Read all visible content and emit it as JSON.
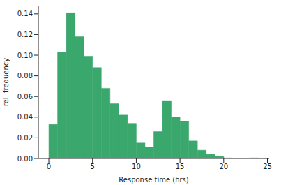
{
  "chart_data": {
    "type": "histogram",
    "x_label": "Response time (hrs)",
    "y_label": "rel. frequency",
    "bins": [
      0,
      1,
      2,
      3,
      4,
      5,
      6,
      7,
      8,
      9,
      10,
      11,
      12,
      13,
      14,
      15,
      16,
      17,
      18,
      19,
      20,
      21,
      22,
      23,
      24
    ],
    "values": [
      0.033,
      0.103,
      0.141,
      0.118,
      0.099,
      0.088,
      0.068,
      0.053,
      0.042,
      0.034,
      0.015,
      0.011,
      0.026,
      0.056,
      0.04,
      0.036,
      0.017,
      0.008,
      0.004,
      0.002,
      0.0005,
      0.0003,
      0,
      0.0005
    ],
    "color": "#3aa76d",
    "xlim": [
      -1.2,
      25.2
    ],
    "xticks": [
      0,
      5,
      10,
      15,
      20,
      25
    ],
    "ylim": [
      0,
      0.148
    ],
    "yticks": [
      {
        "value": 0,
        "label": "0.00"
      },
      {
        "value": 0.02,
        "label": "0.02"
      },
      {
        "value": 0.04,
        "label": "0.04"
      },
      {
        "value": 0.06,
        "label": "0.06"
      },
      {
        "value": 0.08,
        "label": "0.08"
      },
      {
        "value": 0.1,
        "label": "0.10"
      },
      {
        "value": 0.12,
        "label": "0.12"
      },
      {
        "value": 0.14,
        "label": "0.14"
      }
    ],
    "grid": false
  }
}
